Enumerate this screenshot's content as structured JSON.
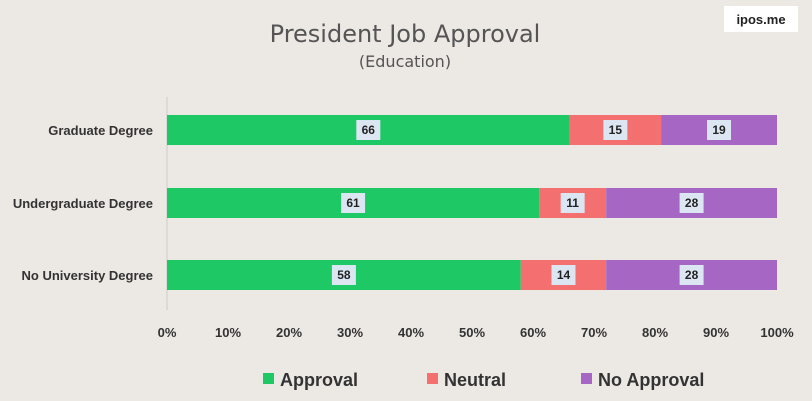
{
  "watermark": "ipos.me",
  "chart_data": {
    "type": "bar",
    "orientation": "horizontal",
    "stacked": true,
    "title": "President Job Approval",
    "subtitle": "(Education)",
    "categories": [
      "Graduate Degree",
      "Undergraduate Degree",
      "No University Degree"
    ],
    "series": [
      {
        "name": "Approval",
        "values": [
          66,
          61,
          58
        ],
        "color": "#1ec864"
      },
      {
        "name": "Neutral",
        "values": [
          15,
          11,
          14
        ],
        "color": "#f46f6f"
      },
      {
        "name": "No Approval",
        "values": [
          19,
          28,
          28
        ],
        "color": "#a566c4"
      }
    ],
    "xlim": [
      0,
      100
    ],
    "xticks": [
      "0%",
      "10%",
      "20%",
      "30%",
      "40%",
      "50%",
      "60%",
      "70%",
      "80%",
      "90%",
      "100%"
    ],
    "legend_position": "bottom",
    "grid": false
  }
}
